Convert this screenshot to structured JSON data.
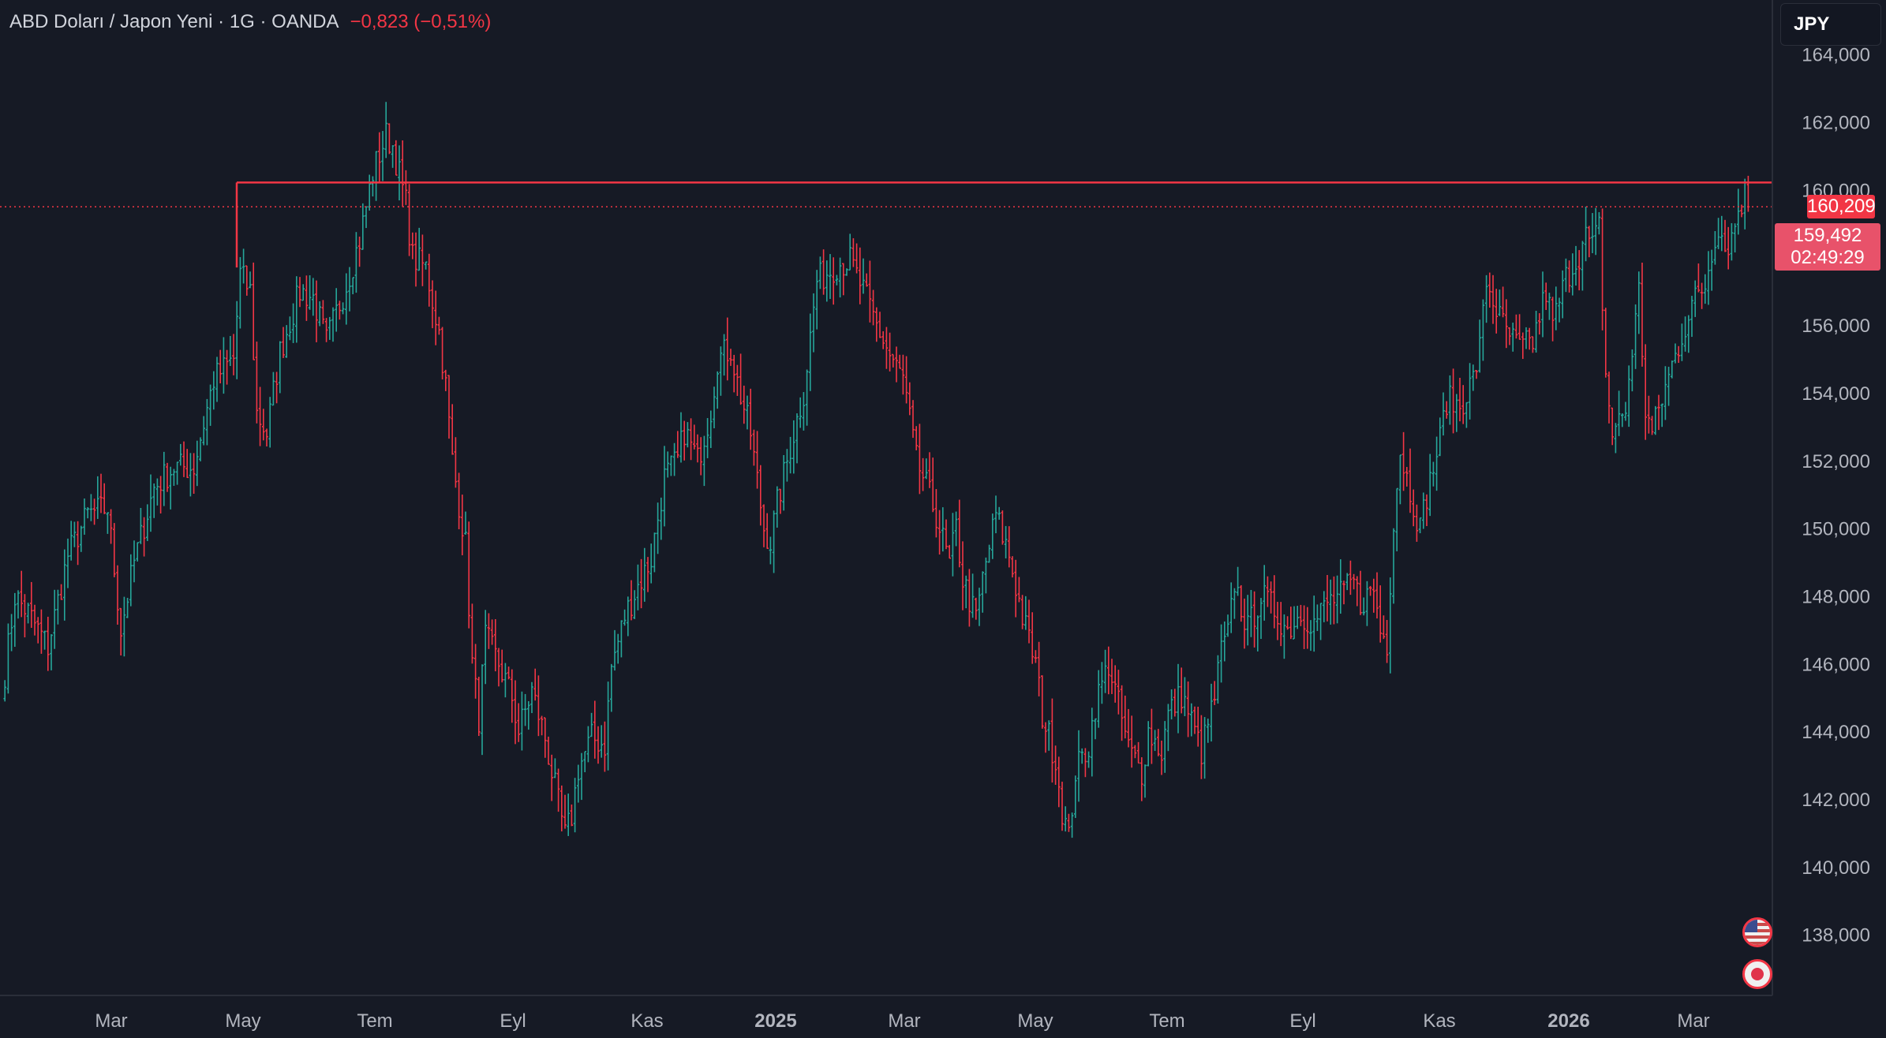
{
  "header": {
    "symbol": "ABD Doları / Japon Yeni · 1G · OANDA",
    "change": "−0,823 (−0,51%)"
  },
  "currency_button": {
    "label": "JPY"
  },
  "price_badges": {
    "level_label": "160,209",
    "last_price": "159,492",
    "countdown": "02:49:29"
  },
  "icons": {
    "flag_us": "us-flag-icon",
    "flag_jp": "japan-flag-icon"
  },
  "colors": {
    "background": "#161a25",
    "up": "#26a69a",
    "down": "#f23645",
    "level_line": "#f23645",
    "last_badge": "#e8526a",
    "axis_text": "#b2b5be"
  },
  "chart_data": {
    "type": "ohlc",
    "title": "ABD Doları / Japon Yeni · 1G · OANDA",
    "x_axis": {
      "ticks": [
        {
          "label": "Mar",
          "bold": false
        },
        {
          "label": "May",
          "bold": false
        },
        {
          "label": "Tem",
          "bold": false
        },
        {
          "label": "Eyl",
          "bold": false
        },
        {
          "label": "Kas",
          "bold": false
        },
        {
          "label": "2025",
          "bold": true
        },
        {
          "label": "Mar",
          "bold": false
        },
        {
          "label": "May",
          "bold": false
        },
        {
          "label": "Tem",
          "bold": false
        },
        {
          "label": "Eyl",
          "bold": false
        },
        {
          "label": "Kas",
          "bold": false
        },
        {
          "label": "2026",
          "bold": true
        },
        {
          "label": "Mar",
          "bold": false
        }
      ]
    },
    "y_axis": {
      "ylim": [
        136.2,
        165.6
      ],
      "ticks": [
        "138,000",
        "140,000",
        "142,000",
        "144,000",
        "146,000",
        "148,000",
        "150,000",
        "152,000",
        "154,000",
        "156,000",
        "158,000",
        "160,000",
        "162,000",
        "164,000"
      ]
    },
    "horizontal_levels": [
      {
        "value": 160.209,
        "label": "160,209",
        "style": "solid"
      },
      {
        "value": 159.492,
        "label": "159,492",
        "style": "dotted"
      }
    ],
    "close_anchors": [
      [
        0,
        145.0
      ],
      [
        4,
        148.0
      ],
      [
        8,
        147.5
      ],
      [
        14,
        146.5
      ],
      [
        20,
        149.2
      ],
      [
        26,
        150.4
      ],
      [
        32,
        150.6
      ],
      [
        36,
        147.0
      ],
      [
        40,
        149.0
      ],
      [
        46,
        151.2
      ],
      [
        52,
        151.8
      ],
      [
        58,
        151.8
      ],
      [
        64,
        154.4
      ],
      [
        70,
        155.0
      ],
      [
        72,
        157.5
      ],
      [
        75,
        157.0
      ],
      [
        77,
        153.4
      ],
      [
        80,
        152.8
      ],
      [
        84,
        155.2
      ],
      [
        90,
        157.0
      ],
      [
        94,
        156.8
      ],
      [
        98,
        155.5
      ],
      [
        104,
        157.2
      ],
      [
        108,
        158.5
      ],
      [
        112,
        160.5
      ],
      [
        116,
        161.6
      ],
      [
        118,
        161.3
      ],
      [
        122,
        159.6
      ],
      [
        124,
        158.0
      ],
      [
        128,
        157.7
      ],
      [
        132,
        155.8
      ],
      [
        134,
        154.2
      ],
      [
        136,
        152.0
      ],
      [
        140,
        149.5
      ],
      [
        142,
        146.0
      ],
      [
        144,
        144.4
      ],
      [
        146,
        146.8
      ],
      [
        150,
        146.0
      ],
      [
        154,
        145.0
      ],
      [
        156,
        144.0
      ],
      [
        160,
        145.2
      ],
      [
        164,
        143.8
      ],
      [
        166,
        142.8
      ],
      [
        170,
        140.9
      ],
      [
        172,
        141.5
      ],
      [
        174,
        142.9
      ],
      [
        178,
        143.8
      ],
      [
        182,
        143.6
      ],
      [
        184,
        145.9
      ],
      [
        188,
        147.4
      ],
      [
        192,
        148.3
      ],
      [
        196,
        149.1
      ],
      [
        200,
        151.5
      ],
      [
        204,
        152.0
      ],
      [
        206,
        152.9
      ],
      [
        210,
        152.0
      ],
      [
        214,
        153.5
      ],
      [
        216,
        155.0
      ],
      [
        220,
        155.3
      ],
      [
        222,
        154.3
      ],
      [
        226,
        152.8
      ],
      [
        230,
        150.0
      ],
      [
        232,
        149.6
      ],
      [
        234,
        150.7
      ],
      [
        238,
        152.4
      ],
      [
        242,
        154.0
      ],
      [
        246,
        157.3
      ],
      [
        252,
        157.8
      ],
      [
        256,
        157.9
      ],
      [
        260,
        157.0
      ],
      [
        264,
        156.0
      ],
      [
        268,
        155.1
      ],
      [
        272,
        154.4
      ],
      [
        276,
        152.0
      ],
      [
        278,
        151.5
      ],
      [
        282,
        150.4
      ],
      [
        286,
        148.9
      ],
      [
        288,
        150.0
      ],
      [
        290,
        148.5
      ],
      [
        294,
        147.3
      ],
      [
        296,
        148.5
      ],
      [
        300,
        150.4
      ],
      [
        304,
        149.2
      ],
      [
        308,
        147.4
      ],
      [
        312,
        146.0
      ],
      [
        314,
        144.5
      ],
      [
        318,
        143.2
      ],
      [
        320,
        141.7
      ],
      [
        322,
        140.8
      ],
      [
        324,
        142.8
      ],
      [
        328,
        143.6
      ],
      [
        330,
        144.8
      ],
      [
        334,
        146.0
      ],
      [
        336,
        145.2
      ],
      [
        340,
        143.5
      ],
      [
        344,
        142.8
      ],
      [
        346,
        144.0
      ],
      [
        350,
        143.4
      ],
      [
        352,
        144.5
      ],
      [
        356,
        145.1
      ],
      [
        358,
        144.6
      ],
      [
        362,
        143.4
      ],
      [
        366,
        145.0
      ],
      [
        368,
        146.4
      ],
      [
        370,
        146.8
      ],
      [
        372,
        148.4
      ],
      [
        376,
        147.0
      ],
      [
        380,
        148.0
      ],
      [
        384,
        147.6
      ],
      [
        388,
        147.0
      ],
      [
        392,
        147.5
      ],
      [
        396,
        147.2
      ],
      [
        400,
        147.8
      ],
      [
        404,
        148.0
      ],
      [
        408,
        148.4
      ],
      [
        410,
        147.8
      ],
      [
        414,
        148.2
      ],
      [
        416,
        147.0
      ],
      [
        418,
        146.6
      ],
      [
        420,
        150.3
      ],
      [
        422,
        152.3
      ],
      [
        424,
        151.5
      ],
      [
        428,
        150.0
      ],
      [
        430,
        151.0
      ],
      [
        434,
        152.6
      ],
      [
        436,
        153.8
      ],
      [
        440,
        153.6
      ],
      [
        444,
        154.4
      ],
      [
        446,
        155.3
      ],
      [
        448,
        157.3
      ],
      [
        452,
        156.2
      ],
      [
        454,
        155.8
      ],
      [
        458,
        155.3
      ],
      [
        462,
        155.5
      ],
      [
        466,
        157.0
      ],
      [
        468,
        156.0
      ],
      [
        472,
        157.4
      ],
      [
        476,
        158.1
      ],
      [
        478,
        158.6
      ],
      [
        480,
        158.3
      ],
      [
        482,
        158.9
      ],
      [
        484,
        154.5
      ],
      [
        486,
        152.8
      ],
      [
        490,
        153.5
      ],
      [
        492,
        155.3
      ],
      [
        494,
        157.0
      ],
      [
        496,
        153.5
      ],
      [
        498,
        152.8
      ],
      [
        500,
        153.5
      ],
      [
        504,
        154.8
      ],
      [
        508,
        156.0
      ],
      [
        510,
        156.6
      ],
      [
        514,
        157.2
      ],
      [
        516,
        158.2
      ],
      [
        518,
        159.0
      ],
      [
        520,
        158.3
      ],
      [
        522,
        158.6
      ],
      [
        524,
        159.4
      ],
      [
        526,
        159.9
      ],
      [
        527,
        159.492
      ]
    ]
  }
}
